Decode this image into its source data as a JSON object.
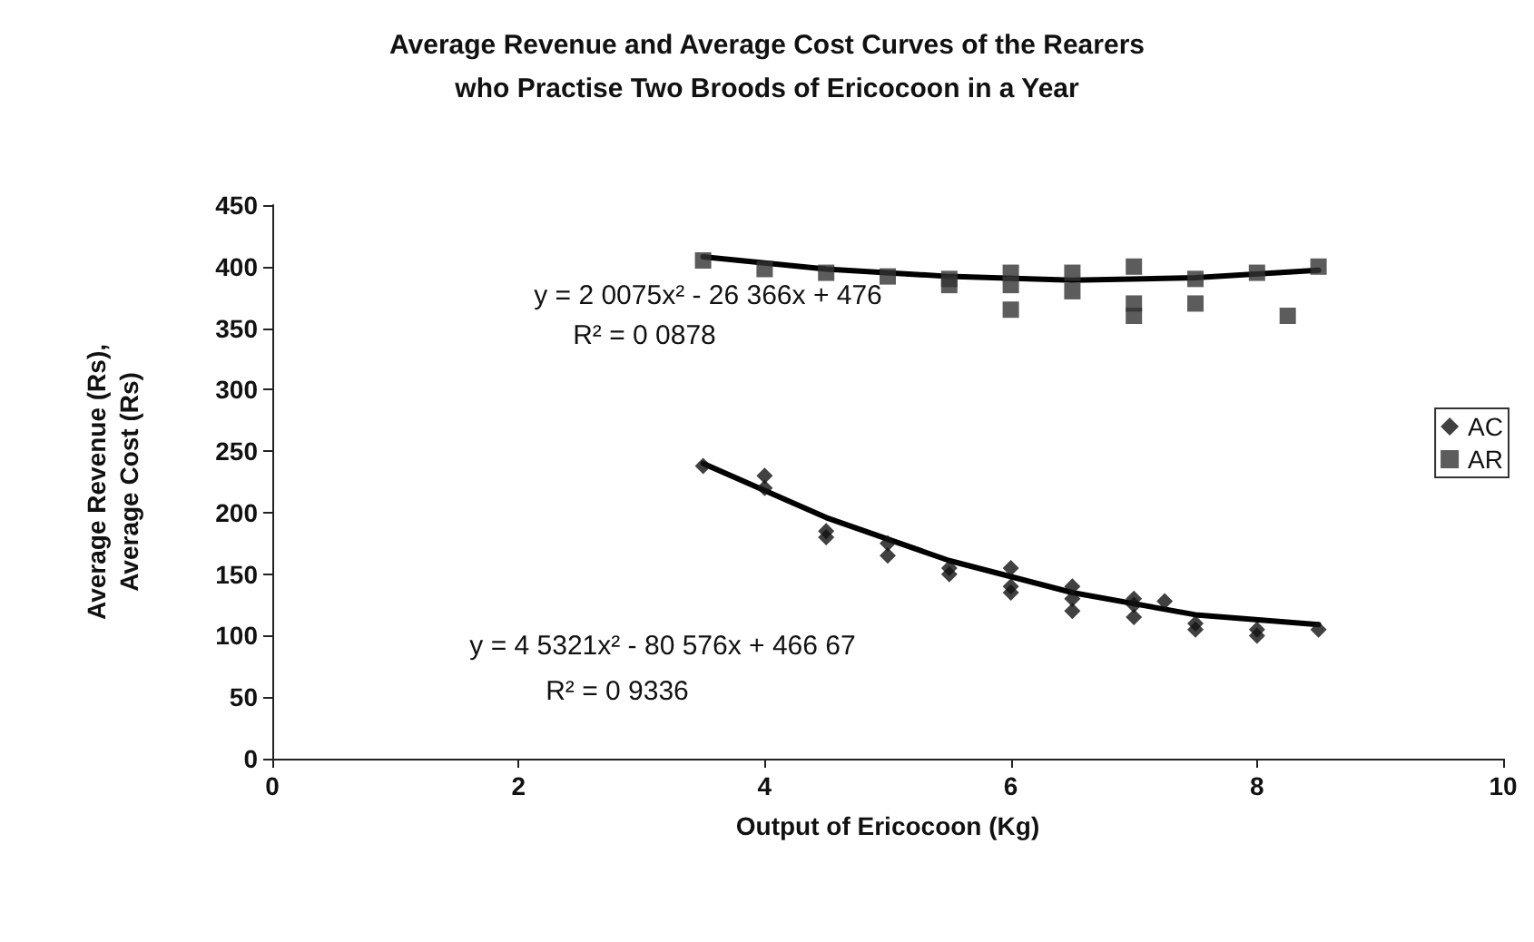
{
  "chart_data": {
    "type": "scatter",
    "title": "Average Revenue and Average Cost Curves of the Rearers\nwho Practise Two Broods of Ericocoon in a Year",
    "xlabel": "Output of Ericocoon (Kg)",
    "ylabel": "Average Revenue (Rs),\nAverage Cost (Rs)",
    "xlim": [
      0,
      10
    ],
    "xticks": [
      0,
      2,
      4,
      6,
      8,
      10
    ],
    "ylim": [
      0,
      450
    ],
    "yticks": [
      0,
      50,
      100,
      150,
      200,
      250,
      300,
      350,
      400,
      450
    ],
    "grid": false,
    "legend": "right",
    "series": [
      {
        "name": "AC",
        "color": "#111111",
        "marker": "diamond",
        "x": [
          3.5,
          4,
          4,
          4.5,
          4.5,
          5,
          5,
          5.5,
          5.5,
          6,
          6,
          6,
          6.5,
          6.5,
          6.5,
          7,
          7,
          7,
          7.25,
          7.5,
          7.5,
          8,
          8,
          8.5
        ],
        "values": [
          238,
          230,
          220,
          185,
          180,
          175,
          165,
          150,
          155,
          155,
          140,
          135,
          140,
          130,
          120,
          130,
          125,
          115,
          128,
          110,
          105,
          105,
          100,
          105
        ]
      },
      {
        "name": "AR",
        "color": "#333333",
        "marker": "square",
        "x": [
          3.5,
          4,
          4.5,
          5,
          5.5,
          5.5,
          6,
          6,
          6,
          6.5,
          6.5,
          7,
          7,
          7,
          7.5,
          7.5,
          8,
          8.25,
          8.5
        ],
        "values": [
          405,
          398,
          395,
          392,
          390,
          385,
          395,
          385,
          365,
          395,
          380,
          400,
          370,
          360,
          390,
          370,
          395,
          360,
          400
        ]
      },
      {
        "type": "line",
        "color": "#000000",
        "marker": "none",
        "x": [
          3.5,
          4.5,
          5.5,
          6.5,
          7.5,
          8.5
        ],
        "values": [
          240,
          196,
          161,
          135,
          117,
          109
        ]
      },
      {
        "type": "line",
        "color": "#000000",
        "marker": "none",
        "x": [
          3.5,
          4.5,
          5.5,
          6.5,
          7.5,
          8.5
        ],
        "values": [
          408,
          398,
          392,
          389,
          391,
          397
        ]
      }
    ],
    "annotations": [
      "y = 2 0075x² - 26 366x + 476",
      "R² = 0 0878",
      "y = 4 5321x² - 80 576x + 466 67",
      "R² = 0 9336"
    ]
  }
}
